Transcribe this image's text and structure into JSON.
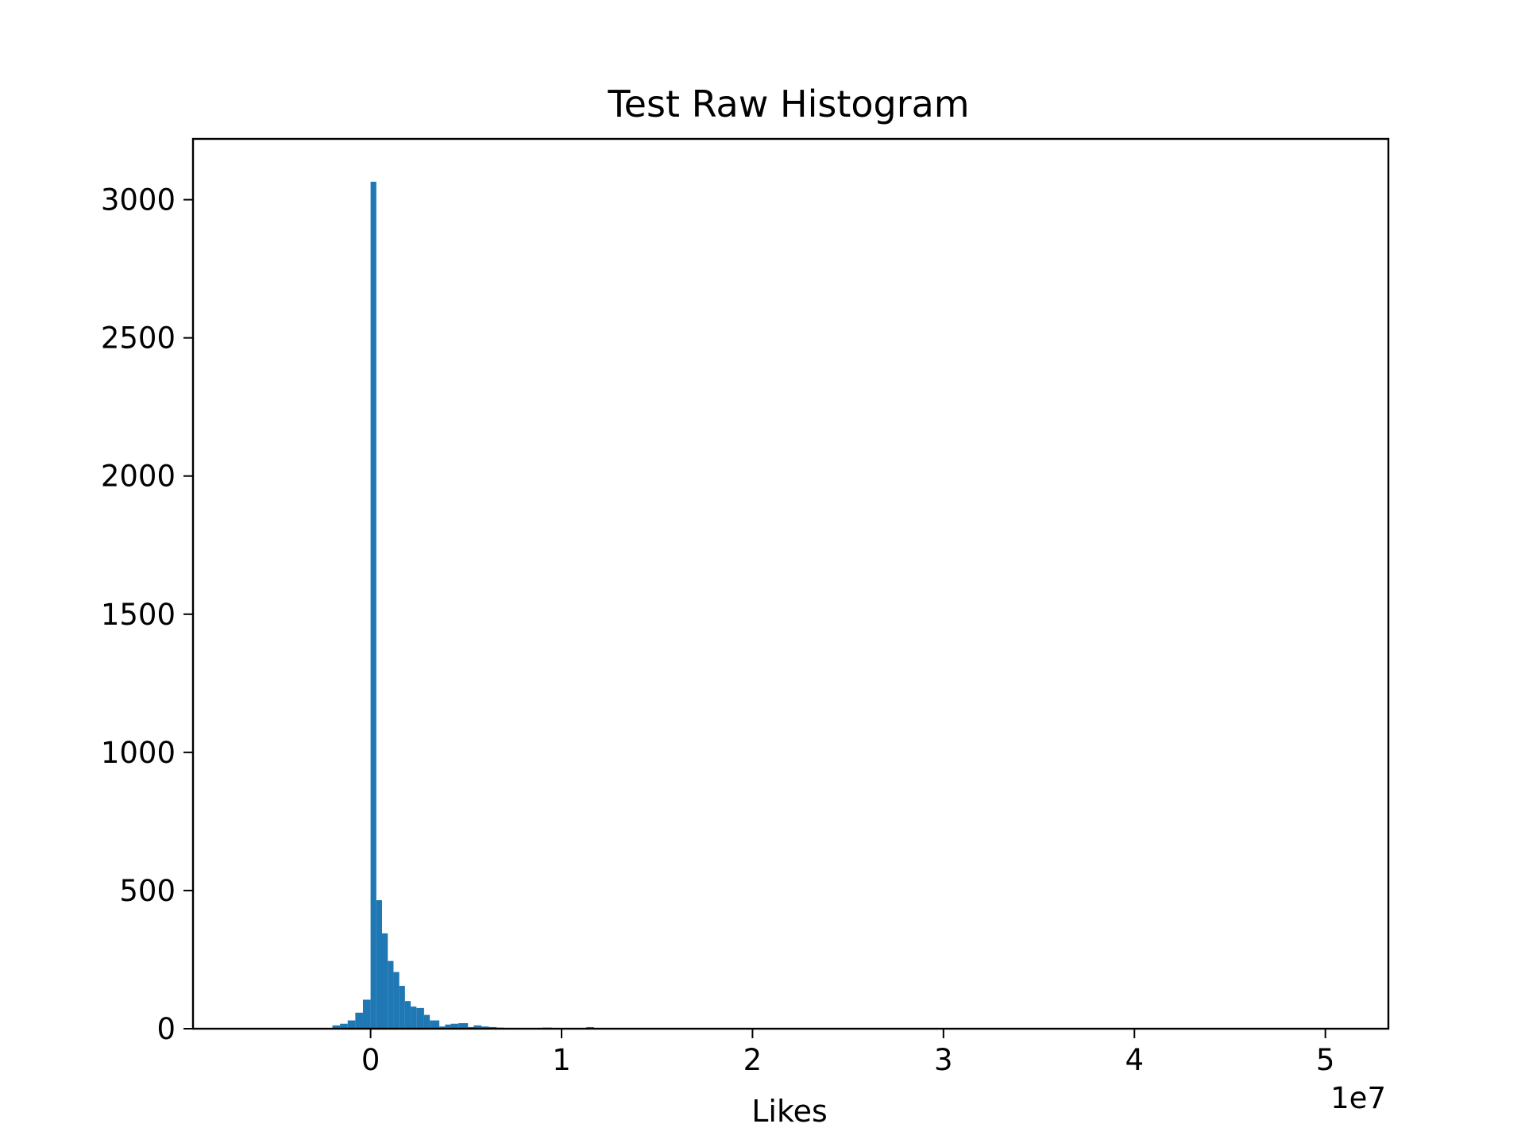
{
  "chart_data": {
    "type": "bar",
    "title": "Test Raw Histogram",
    "xlabel": "Likes",
    "ylabel": "",
    "x_offset_label": "1e7",
    "xlim": [
      -9.3,
      53.3
    ],
    "ylim": [
      0,
      3220
    ],
    "x_scale": 10000000.0,
    "bar_color": "#1f77b4",
    "grid": false,
    "legend": "none",
    "xticks": [
      {
        "value": 0,
        "label": "0"
      },
      {
        "value": 10,
        "label": "1"
      },
      {
        "value": 20,
        "label": "2"
      },
      {
        "value": 30,
        "label": "3"
      },
      {
        "value": 40,
        "label": "4"
      },
      {
        "value": 50,
        "label": "5"
      }
    ],
    "yticks": [
      {
        "value": 0,
        "label": "0"
      },
      {
        "value": 500,
        "label": "500"
      },
      {
        "value": 1000,
        "label": "1000"
      },
      {
        "value": 1500,
        "label": "1500"
      },
      {
        "value": 2000,
        "label": "2000"
      },
      {
        "value": 2500,
        "label": "2500"
      },
      {
        "value": 3000,
        "label": "3000"
      }
    ],
    "bins": [
      {
        "x0": -2.0,
        "x1": -1.6,
        "count": 12
      },
      {
        "x0": -1.6,
        "x1": -1.2,
        "count": 18
      },
      {
        "x0": -1.2,
        "x1": -0.8,
        "count": 30
      },
      {
        "x0": -0.8,
        "x1": -0.4,
        "count": 58
      },
      {
        "x0": -0.4,
        "x1": 0.0,
        "count": 105
      },
      {
        "x0": 0.0,
        "x1": 0.3,
        "count": 3065
      },
      {
        "x0": 0.3,
        "x1": 0.6,
        "count": 465
      },
      {
        "x0": 0.6,
        "x1": 0.9,
        "count": 345
      },
      {
        "x0": 0.9,
        "x1": 1.2,
        "count": 245
      },
      {
        "x0": 1.2,
        "x1": 1.5,
        "count": 205
      },
      {
        "x0": 1.5,
        "x1": 1.8,
        "count": 155
      },
      {
        "x0": 1.8,
        "x1": 2.1,
        "count": 100
      },
      {
        "x0": 2.1,
        "x1": 2.4,
        "count": 80
      },
      {
        "x0": 2.4,
        "x1": 2.8,
        "count": 75
      },
      {
        "x0": 2.8,
        "x1": 3.1,
        "count": 50
      },
      {
        "x0": 3.1,
        "x1": 3.6,
        "count": 30
      },
      {
        "x0": 3.6,
        "x1": 3.9,
        "count": 8
      },
      {
        "x0": 3.9,
        "x1": 4.2,
        "count": 15
      },
      {
        "x0": 4.2,
        "x1": 4.6,
        "count": 18
      },
      {
        "x0": 4.6,
        "x1": 5.1,
        "count": 20
      },
      {
        "x0": 5.1,
        "x1": 5.4,
        "count": 6
      },
      {
        "x0": 5.4,
        "x1": 5.8,
        "count": 12
      },
      {
        "x0": 5.8,
        "x1": 6.2,
        "count": 8
      },
      {
        "x0": 6.2,
        "x1": 6.6,
        "count": 6
      },
      {
        "x0": 6.6,
        "x1": 7.0,
        "count": 4
      },
      {
        "x0": 7.0,
        "x1": 7.5,
        "count": 3
      },
      {
        "x0": 8.0,
        "x1": 8.5,
        "count": 2
      },
      {
        "x0": 9.0,
        "x1": 9.5,
        "count": 4
      },
      {
        "x0": 9.5,
        "x1": 10.0,
        "count": 2
      },
      {
        "x0": 11.3,
        "x1": 11.7,
        "count": 6
      },
      {
        "x0": 13.0,
        "x1": 13.5,
        "count": 1
      }
    ]
  }
}
